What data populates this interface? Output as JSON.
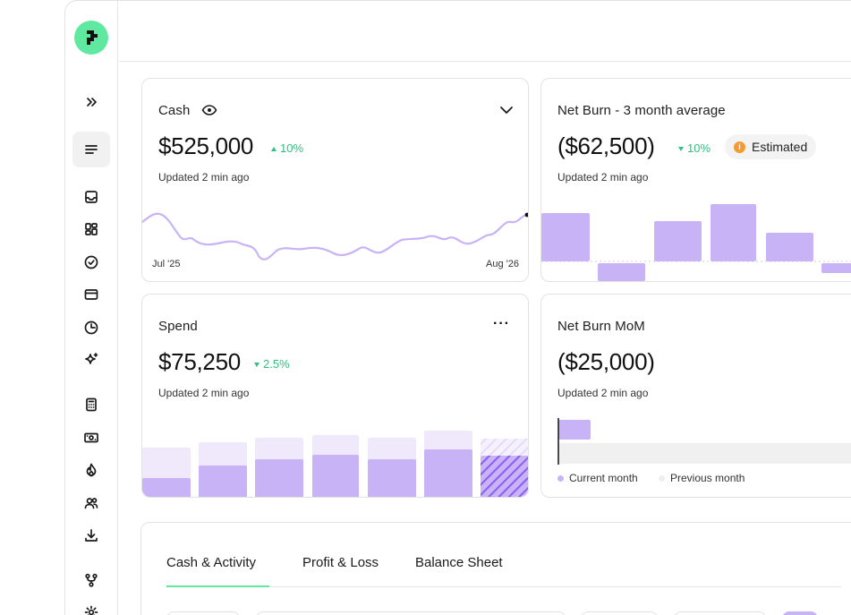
{
  "sidebar": {
    "icons": [
      "expand-icon",
      "menu-icon",
      "inbox-icon",
      "dashboard-icon",
      "check-circle-icon",
      "card-icon",
      "clock-icon",
      "sparkle-icon",
      "calculator-icon",
      "cash-icon",
      "flame-icon",
      "users-icon",
      "download-icon",
      "branch-icon",
      "gear-icon"
    ]
  },
  "cards": {
    "cash": {
      "title": "Cash",
      "value": "$525,000",
      "delta": "10%",
      "updated": "Updated 2 min ago",
      "x_start": "Jul '25",
      "x_end": "Aug '26"
    },
    "net_burn_avg": {
      "title": "Net Burn - 3 month average",
      "value": "($62,500)",
      "delta": "10%",
      "badge": "Estimated",
      "updated": "Updated 2 min ago"
    },
    "spend": {
      "title": "Spend",
      "value": "$75,250",
      "delta": "2.5%",
      "updated": "Updated 2 min ago",
      "menu": "···"
    },
    "net_burn_mom": {
      "title": "Net Burn MoM",
      "value": "($25,000)",
      "updated": "Updated 2 min ago",
      "legend_current": "Current month",
      "legend_previous": "Previous month"
    }
  },
  "tabs": [
    {
      "label": "Cash & Activity",
      "active": true
    },
    {
      "label": "Profit & Loss",
      "active": false
    },
    {
      "label": "Balance Sheet",
      "active": false
    }
  ],
  "colors": {
    "accent": "#5fe8a0",
    "bar": "#c9b3f7",
    "bar_light": "#efe9fb",
    "positive": "#2ec27e",
    "estimated": "#f59a2f"
  }
}
